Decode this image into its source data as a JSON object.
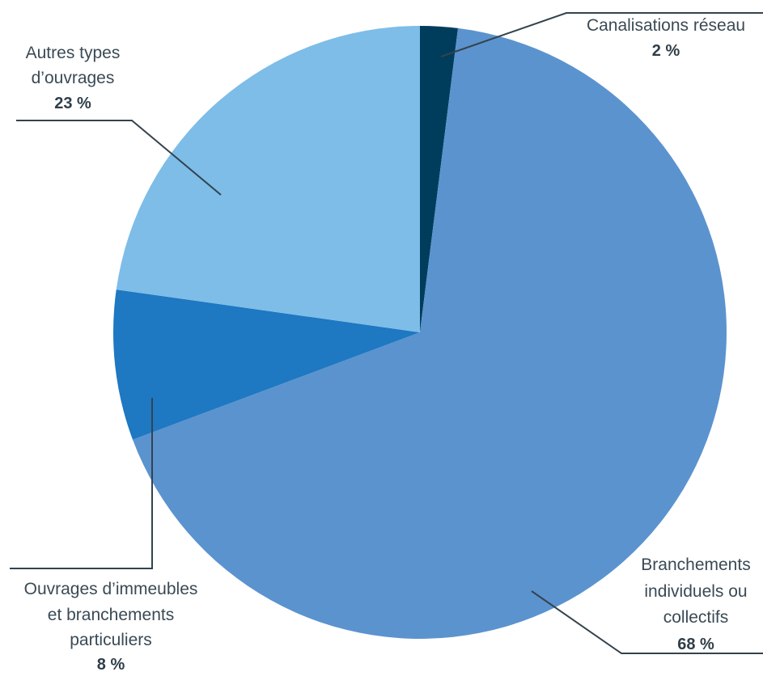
{
  "chart_data": {
    "type": "pie",
    "title": "",
    "slices": [
      {
        "id": "canalisations",
        "label_lines": [
          "Canalisations réseau"
        ],
        "value": 2,
        "value_label": "2 %",
        "color": "#003d5c"
      },
      {
        "id": "branchements",
        "label_lines": [
          "Branchements",
          "individuels ou",
          "collectifs"
        ],
        "value": 68,
        "value_label": "68 %",
        "color": "#5b93cf"
      },
      {
        "id": "ouvrages-immeubles",
        "label_lines": [
          "Ouvrages d’immeubles",
          "et branchements",
          "particuliers"
        ],
        "value": 8,
        "value_label": "8 %",
        "color": "#1e78c2"
      },
      {
        "id": "autres",
        "label_lines": [
          "Autres types",
          "d’ouvrages"
        ],
        "value": 23,
        "value_label": "23 %",
        "color": "#7dbde8"
      }
    ],
    "start_position": "top (12 o'clock)",
    "direction": "clockwise",
    "legend": "none (callout labels with leader lines)"
  }
}
